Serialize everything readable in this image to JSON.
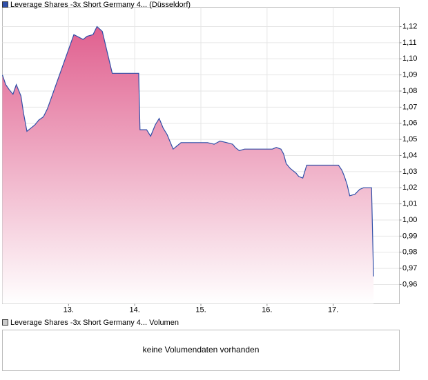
{
  "chart_data": {
    "type": "area",
    "series": [
      {
        "name": "Leverage Shares -3x Short Germany 4... (Düsseldorf)",
        "color": "#2f4fa8",
        "fill_top": "#e0608f",
        "fill_bottom": "#ffffff",
        "x": [
          12.0,
          12.05,
          12.1,
          12.16,
          12.21,
          12.28,
          12.32,
          12.37,
          12.43,
          12.49,
          12.55,
          12.62,
          12.68,
          13.08,
          13.22,
          13.28,
          13.37,
          13.43,
          13.51,
          13.66,
          14.06,
          14.08,
          14.18,
          14.24,
          14.31,
          14.37,
          14.43,
          14.49,
          14.58,
          14.64,
          14.7,
          15.1,
          15.2,
          15.29,
          15.39,
          15.48,
          15.52,
          15.58,
          15.66,
          16.08,
          16.14,
          16.21,
          16.25,
          16.29,
          16.35,
          16.44,
          16.48,
          16.54,
          16.6,
          17.08,
          17.13,
          17.17,
          17.21,
          17.25,
          17.33,
          17.4,
          17.46,
          17.58,
          17.61
        ],
        "values": [
          1.09,
          1.084,
          1.081,
          1.078,
          1.084,
          1.077,
          1.066,
          1.055,
          1.057,
          1.059,
          1.062,
          1.064,
          1.069,
          1.115,
          1.112,
          1.114,
          1.115,
          1.12,
          1.117,
          1.091,
          1.091,
          1.056,
          1.056,
          1.052,
          1.059,
          1.063,
          1.057,
          1.053,
          1.044,
          1.046,
          1.048,
          1.048,
          1.047,
          1.049,
          1.048,
          1.047,
          1.045,
          1.043,
          1.044,
          1.044,
          1.045,
          1.044,
          1.041,
          1.035,
          1.032,
          1.029,
          1.027,
          1.026,
          1.034,
          1.034,
          1.031,
          1.027,
          1.022,
          1.015,
          1.016,
          1.019,
          1.02,
          1.02,
          0.965
        ]
      }
    ],
    "xlim": [
      12.0,
      18.0
    ],
    "xticks": [
      {
        "value": 13,
        "label": "13."
      },
      {
        "value": 14,
        "label": "14."
      },
      {
        "value": 15,
        "label": "15."
      },
      {
        "value": 16,
        "label": "16."
      },
      {
        "value": 17,
        "label": "17."
      }
    ],
    "ylim": [
      0.948,
      1.132
    ],
    "yticks": [
      {
        "value": 0.96,
        "label": "0,96"
      },
      {
        "value": 0.97,
        "label": "0,97"
      },
      {
        "value": 0.98,
        "label": "0,98"
      },
      {
        "value": 0.99,
        "label": "0,99"
      },
      {
        "value": 1.0,
        "label": "1,00"
      },
      {
        "value": 1.01,
        "label": "1,01"
      },
      {
        "value": 1.02,
        "label": "1,02"
      },
      {
        "value": 1.03,
        "label": "1,03"
      },
      {
        "value": 1.04,
        "label": "1,04"
      },
      {
        "value": 1.05,
        "label": "1,05"
      },
      {
        "value": 1.06,
        "label": "1,06"
      },
      {
        "value": 1.07,
        "label": "1,07"
      },
      {
        "value": 1.08,
        "label": "1,08"
      },
      {
        "value": 1.09,
        "label": "1,09"
      },
      {
        "value": 1.1,
        "label": "1,10"
      },
      {
        "value": 1.11,
        "label": "1,11"
      },
      {
        "value": 1.12,
        "label": "1,12"
      }
    ],
    "grid": true
  },
  "volume_panel": {
    "legend": "Leverage Shares -3x Short Germany 4... Volumen",
    "color": "#cccccc",
    "message": "keine Volumendaten vorhanden"
  }
}
